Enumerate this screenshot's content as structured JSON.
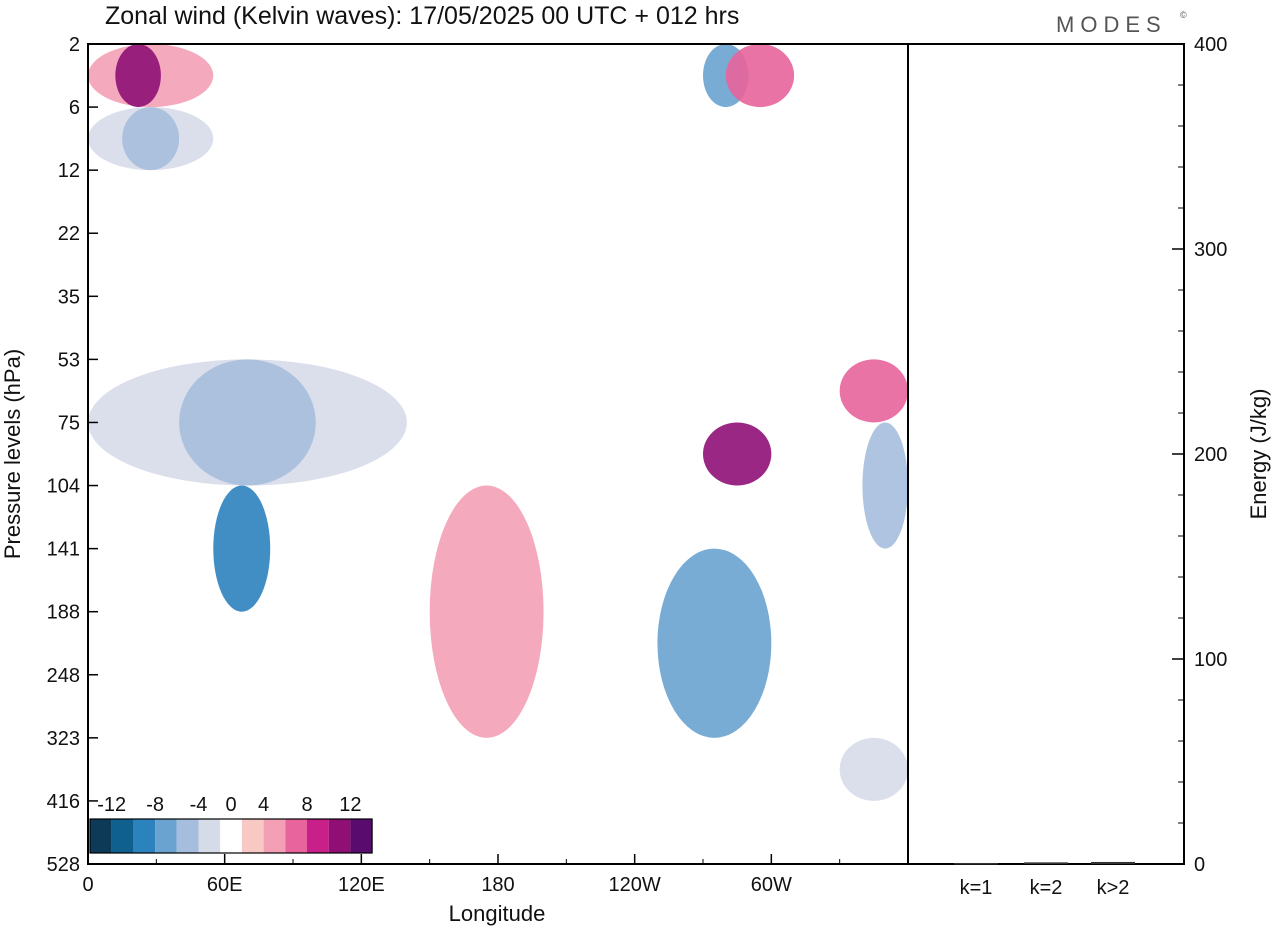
{
  "chart_data": [
    {
      "type": "heatmap",
      "title": "Zonal wind (Kelvin waves):  17/05/2025  00 UTC  + 012 hrs",
      "xlabel": "Longitude",
      "ylabel": "Pressure levels (hPa)",
      "x_ticks": [
        "0",
        "60E",
        "120E",
        "180",
        "120W",
        "60W"
      ],
      "x_tick_degrees": [
        0,
        60,
        120,
        180,
        240,
        300
      ],
      "xlim": [
        0,
        360
      ],
      "y_ticks": [
        "2",
        "6",
        "12",
        "22",
        "35",
        "53",
        "75",
        "104",
        "141",
        "188",
        "248",
        "323",
        "416",
        "528"
      ],
      "y_scale": "categorical-levels, top to bottom",
      "colorbar": {
        "labels": [
          "-12",
          "-8",
          "-4",
          "0",
          "4",
          "8",
          "12"
        ],
        "bounds": [
          -14,
          -12,
          -10,
          -8,
          -6,
          -4,
          -2,
          2,
          4,
          6,
          8,
          10,
          12,
          14
        ],
        "colors": [
          "#0d3a56",
          "#0f5f8f",
          "#2b82bd",
          "#6aa3cf",
          "#a6bedd",
          "#d6dbe9",
          "#ffffff",
          "#f8c8c4",
          "#f3a0b6",
          "#e8649c",
          "#c81f88",
          "#8f0f75",
          "#5a0b6e"
        ],
        "placement": "bottom-left"
      },
      "features": [
        {
          "value": 4,
          "lon_range": [
            0,
            55
          ],
          "level_range": [
            "2",
            "6"
          ]
        },
        {
          "value": 10,
          "lon_range": [
            12,
            32
          ],
          "level_range": [
            "2",
            "6"
          ]
        },
        {
          "value": -4,
          "lon_range": [
            0,
            55
          ],
          "level_range": [
            "6",
            "12"
          ]
        },
        {
          "value": -6,
          "lon_range": [
            15,
            40
          ],
          "level_range": [
            "6",
            "12"
          ]
        },
        {
          "value": -8,
          "lon_range": [
            270,
            290
          ],
          "level_range": [
            "2",
            "6"
          ]
        },
        {
          "value": 6,
          "lon_range": [
            280,
            310
          ],
          "level_range": [
            "2",
            "6"
          ]
        },
        {
          "value": -4,
          "lon_range": [
            0,
            140
          ],
          "level_range": [
            "53",
            "104"
          ]
        },
        {
          "value": -6,
          "lon_range": [
            40,
            100
          ],
          "level_range": [
            "53",
            "104"
          ]
        },
        {
          "value": -10,
          "lon_range": [
            55,
            80
          ],
          "level_range": [
            "104",
            "188"
          ]
        },
        {
          "value": -8,
          "lon_range": [
            250,
            300
          ],
          "level_range": [
            "141",
            "323"
          ]
        },
        {
          "value": 4,
          "lon_range": [
            150,
            200
          ],
          "level_range": [
            "104",
            "323"
          ]
        },
        {
          "value": 10,
          "lon_range": [
            270,
            300
          ],
          "level_range": [
            "75",
            "104"
          ]
        },
        {
          "value": 6,
          "lon_range": [
            330,
            360
          ],
          "level_range": [
            "53",
            "75"
          ]
        },
        {
          "value": -6,
          "lon_range": [
            340,
            360
          ],
          "level_range": [
            "75",
            "141"
          ]
        },
        {
          "value": -4,
          "lon_range": [
            330,
            360
          ],
          "level_range": [
            "323",
            "416"
          ]
        }
      ]
    },
    {
      "type": "bar",
      "ylabel": "Energy (J/kg)",
      "categories": [
        "k=1",
        "k=2",
        "k>2"
      ],
      "values": [
        0.5,
        0.8,
        1.0
      ],
      "ylim": [
        0,
        400
      ],
      "y_ticks": [
        "0",
        "100",
        "200",
        "300",
        "400"
      ]
    }
  ],
  "logo": "MODES",
  "logo_mark": "©"
}
